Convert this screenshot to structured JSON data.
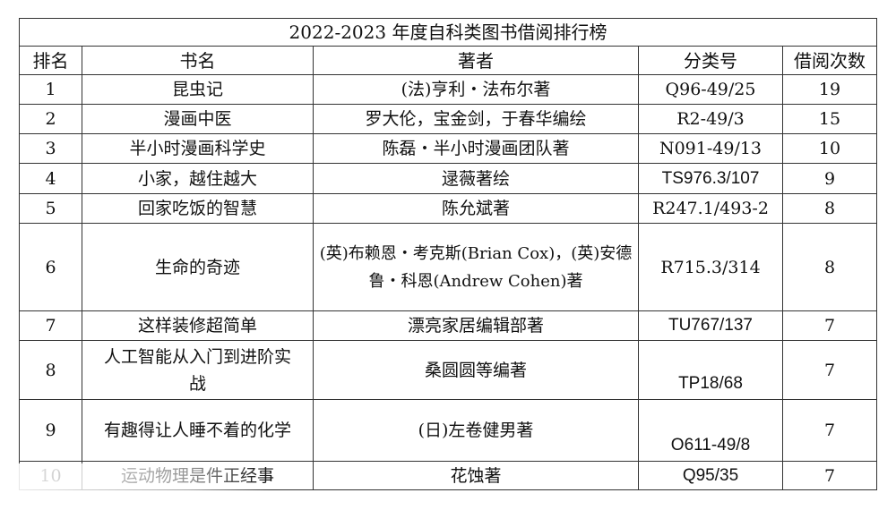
{
  "table": {
    "title": "2022-2023 年度自科类图书借阅排行榜",
    "headers": [
      "排名",
      "书名",
      "著者",
      "分类号",
      "借阅次数"
    ],
    "rows": [
      {
        "rank": "1",
        "title": "昆虫记",
        "author": "(法)亨利・法布尔著",
        "class_no": "Q96-49/25",
        "count": "19"
      },
      {
        "rank": "2",
        "title": "漫画中医",
        "author": "罗大伦，宝金剑，于春华编绘",
        "class_no": "R2-49/3",
        "count": "15"
      },
      {
        "rank": "3",
        "title": "半小时漫画科学史",
        "author": "陈磊・半小时漫画团队著",
        "class_no": "N091-49/13",
        "count": "10"
      },
      {
        "rank": "4",
        "title": "小家，越住越大",
        "author": "逯薇著绘",
        "class_no": "TS976.3/107",
        "count": "9"
      },
      {
        "rank": "5",
        "title": "回家吃饭的智慧",
        "author": "陈允斌著",
        "class_no": "R247.1/493-2",
        "count": "8"
      },
      {
        "rank": "6",
        "title": "生命的奇迹",
        "author": "(英)布赖恩・考克斯(Brian Cox)，(英)安德鲁・科恩(Andrew Cohen)著",
        "class_no": "R715.3/314",
        "count": "8"
      },
      {
        "rank": "7",
        "title": "这样装修超简单",
        "author": "漂亮家居编辑部著",
        "class_no": "TU767/137",
        "count": "7"
      },
      {
        "rank": "8",
        "title": "人工智能从入门到进阶实战",
        "author": "桑圆圆等编著",
        "class_no": "TP18/68",
        "count": "7"
      },
      {
        "rank": "9",
        "title": "有趣得让人睡不着的化学",
        "author": "(日)左卷健男著",
        "class_no": "O611-49/8",
        "count": "7"
      },
      {
        "rank": "10",
        "title": "运动物理是件正经事",
        "author": "花蚀著",
        "class_no": "Q95/35",
        "count": "7"
      }
    ]
  }
}
